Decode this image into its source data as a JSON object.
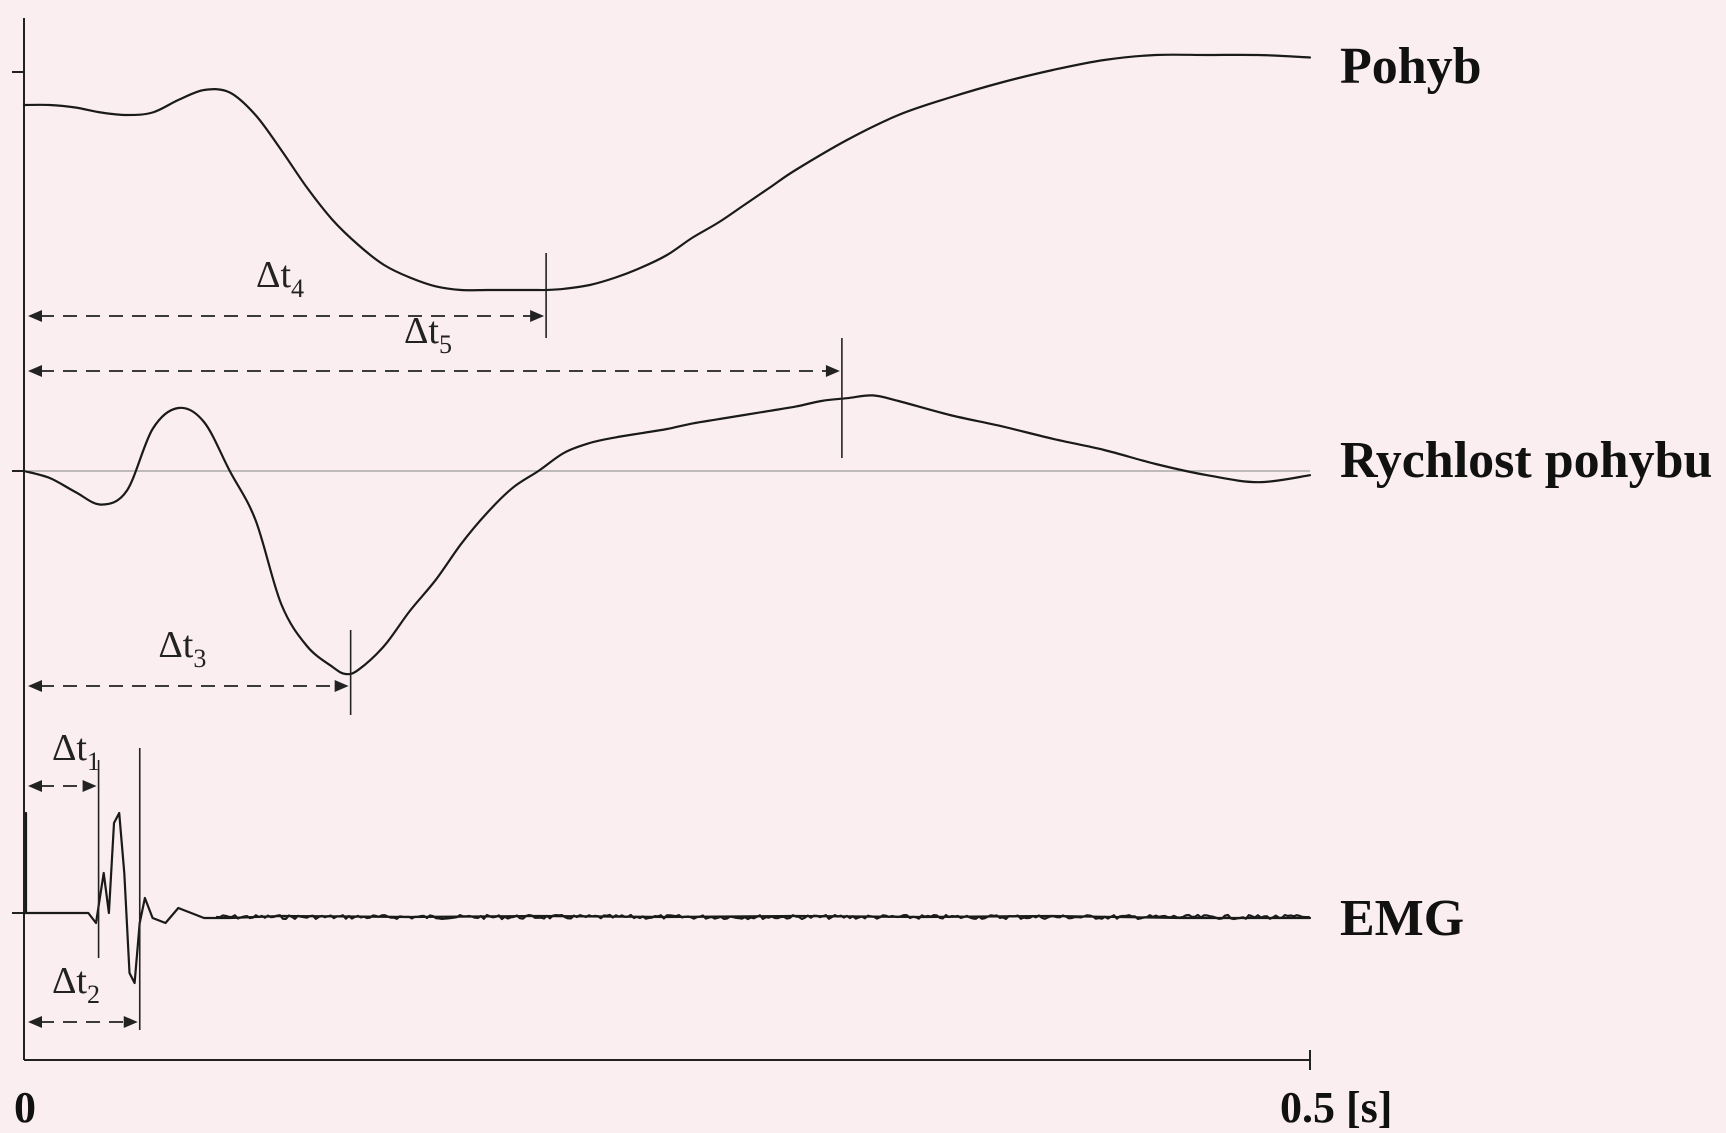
{
  "chart_data": {
    "type": "line",
    "xlim": [
      0,
      0.5
    ],
    "x_ticks": [
      "0",
      "0.5 [s]"
    ],
    "grid": false,
    "legend": "none",
    "series": [
      {
        "name": "Pohyb",
        "x": [
          0,
          0.01,
          0.02,
          0.03,
          0.04,
          0.05,
          0.06,
          0.07,
          0.08,
          0.09,
          0.1,
          0.11,
          0.12,
          0.13,
          0.14,
          0.15,
          0.16,
          0.17,
          0.18,
          0.19,
          0.2,
          0.203,
          0.21,
          0.22,
          0.23,
          0.24,
          0.25,
          0.26,
          0.27,
          0.28,
          0.29,
          0.3,
          0.32,
          0.34,
          0.36,
          0.38,
          0.4,
          0.42,
          0.44,
          0.46,
          0.48,
          0.5
        ],
        "y": [
          0.74,
          0.74,
          0.73,
          0.71,
          0.7,
          0.71,
          0.76,
          0.8,
          0.79,
          0.7,
          0.56,
          0.41,
          0.28,
          0.18,
          0.1,
          0.05,
          0.015,
          0.0,
          0.0,
          0.0,
          0.0,
          0.0,
          0.005,
          0.02,
          0.05,
          0.09,
          0.14,
          0.21,
          0.27,
          0.34,
          0.41,
          0.48,
          0.6,
          0.7,
          0.77,
          0.83,
          0.88,
          0.92,
          0.94,
          0.94,
          0.94,
          0.93
        ]
      },
      {
        "name": "Rychlost pohybu",
        "x": [
          0,
          0.01,
          0.02,
          0.03,
          0.04,
          0.05,
          0.06,
          0.07,
          0.08,
          0.09,
          0.1,
          0.11,
          0.12,
          0.125,
          0.13,
          0.14,
          0.15,
          0.16,
          0.17,
          0.18,
          0.19,
          0.2,
          0.21,
          0.22,
          0.23,
          0.24,
          0.25,
          0.26,
          0.27,
          0.28,
          0.29,
          0.3,
          0.31,
          0.32,
          0.33,
          0.34,
          0.36,
          0.38,
          0.4,
          0.42,
          0.44,
          0.46,
          0.48,
          0.5
        ],
        "y": [
          0.0,
          -0.05,
          -0.15,
          -0.24,
          -0.14,
          0.3,
          0.45,
          0.35,
          0.0,
          -0.35,
          -0.95,
          -1.25,
          -1.4,
          -1.45,
          -1.42,
          -1.25,
          -1.0,
          -0.78,
          -0.52,
          -0.3,
          -0.12,
          0.0,
          0.13,
          0.2,
          0.24,
          0.27,
          0.3,
          0.34,
          0.37,
          0.4,
          0.43,
          0.46,
          0.5,
          0.52,
          0.54,
          0.5,
          0.4,
          0.32,
          0.23,
          0.15,
          0.05,
          -0.03,
          -0.08,
          -0.03
        ]
      },
      {
        "name": "EMG",
        "x": [
          0,
          0.01,
          0.02,
          0.025,
          0.028,
          0.031,
          0.033,
          0.035,
          0.037,
          0.039,
          0.041,
          0.043,
          0.045,
          0.047,
          0.05,
          0.055,
          0.06,
          0.065,
          0.07,
          0.08,
          0.1,
          0.15,
          0.2,
          0.25,
          0.3,
          0.35,
          0.4,
          0.45,
          0.5
        ],
        "y": [
          0.0,
          0.0,
          0.0,
          0.0,
          -0.1,
          0.4,
          0.0,
          0.9,
          1.0,
          0.4,
          -0.6,
          -0.7,
          -0.1,
          0.15,
          -0.05,
          -0.1,
          0.05,
          0.0,
          -0.05,
          -0.05,
          -0.03,
          -0.04,
          -0.03,
          -0.04,
          -0.03,
          -0.04,
          -0.03,
          -0.05,
          -0.05
        ]
      }
    ],
    "annotations": [
      {
        "label": "Δt",
        "sub": "1",
        "from": 0,
        "to": 0.029
      },
      {
        "label": "Δt",
        "sub": "2",
        "from": 0,
        "to": 0.045
      },
      {
        "label": "Δt",
        "sub": "3",
        "from": 0,
        "to": 0.127
      },
      {
        "label": "Δt",
        "sub": "4",
        "from": 0,
        "to": 0.203
      },
      {
        "label": "Δt",
        "sub": "5",
        "from": 0,
        "to": 0.318
      }
    ],
    "colors": {
      "background": "#fbeef1",
      "trace": "#1a1a1a",
      "baseline": "#a9a9a9"
    }
  }
}
